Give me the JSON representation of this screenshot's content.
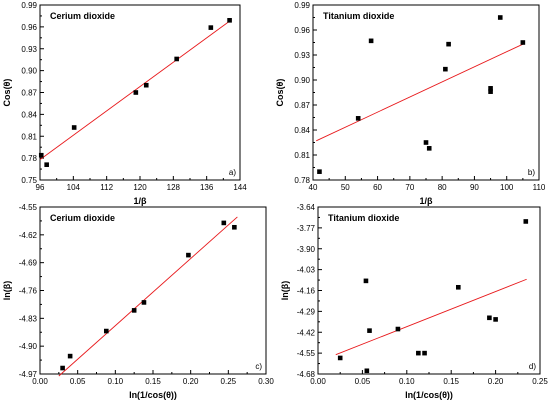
{
  "chart_data": [
    {
      "type": "scatter",
      "title": "Cerium  dioxide",
      "panel_label": "a)",
      "xlabel": "1/β",
      "ylabel": "Cos(θ)",
      "xlim": [
        96,
        144
      ],
      "ylim": [
        0.75,
        0.99
      ],
      "xticks": [
        "96",
        "104",
        "112",
        "120",
        "128",
        "136",
        "144"
      ],
      "yticks": [
        "0.75",
        "0.78",
        "0.81",
        "0.84",
        "0.87",
        "0.90",
        "0.93",
        "0.96",
        "0.99"
      ],
      "points": [
        [
          96.3,
          0.784
        ],
        [
          97.6,
          0.771
        ],
        [
          104.2,
          0.822
        ],
        [
          119.0,
          0.87
        ],
        [
          121.5,
          0.88
        ],
        [
          128.8,
          0.916
        ],
        [
          137.0,
          0.959
        ],
        [
          141.5,
          0.969
        ]
      ],
      "fit_line": [
        [
          96,
          0.778
        ],
        [
          142,
          0.97
        ]
      ]
    },
    {
      "type": "scatter",
      "title": "Titanium  dioxide",
      "panel_label": "b)",
      "xlabel": "1/β",
      "ylabel": "Cos(θ)",
      "xlim": [
        40,
        110
      ],
      "ylim": [
        0.78,
        0.99
      ],
      "xticks": [
        "40",
        "50",
        "60",
        "70",
        "80",
        "90",
        "100",
        "110"
      ],
      "yticks": [
        "0.78",
        "0.81",
        "0.84",
        "0.87",
        "0.90",
        "0.93",
        "0.96",
        "0.99"
      ],
      "points": [
        [
          42,
          0.79
        ],
        [
          54,
          0.854
        ],
        [
          58,
          0.947
        ],
        [
          75,
          0.825
        ],
        [
          76,
          0.818
        ],
        [
          81,
          0.913
        ],
        [
          82,
          0.943
        ],
        [
          95,
          0.886
        ],
        [
          95,
          0.89
        ],
        [
          98,
          0.975
        ],
        [
          105,
          0.945
        ]
      ],
      "fit_line": [
        [
          41,
          0.827
        ],
        [
          105,
          0.943
        ]
      ]
    },
    {
      "type": "scatter",
      "title": "Cerium  dioxide",
      "panel_label": "c)",
      "xlabel": "ln(1/cos(θ))",
      "ylabel": "ln(β)",
      "xlim": [
        0.0,
        0.3
      ],
      "ylim": [
        -4.97,
        -4.55
      ],
      "xticks": [
        "0.00",
        "0.05",
        "0.10",
        "0.15",
        "0.20",
        "0.25",
        "0.30"
      ],
      "yticks": [
        "-4.97",
        "-4.90",
        "-4.83",
        "-4.76",
        "-4.69",
        "-4.62",
        "-4.55"
      ],
      "points": [
        [
          0.03,
          -4.955
        ],
        [
          0.04,
          -4.925
        ],
        [
          0.088,
          -4.862
        ],
        [
          0.125,
          -4.81
        ],
        [
          0.138,
          -4.79
        ],
        [
          0.197,
          -4.671
        ],
        [
          0.244,
          -4.59
        ],
        [
          0.258,
          -4.601
        ]
      ],
      "fit_line": [
        [
          0.025,
          -4.975
        ],
        [
          0.262,
          -4.575
        ]
      ]
    },
    {
      "type": "scatter",
      "title": "Titanium  dioxide",
      "panel_label": "d)",
      "xlabel": "ln(1/cos(θ))",
      "ylabel": "ln(β)",
      "xlim": [
        0.0,
        0.25
      ],
      "ylim": [
        -4.68,
        -3.64
      ],
      "xticks": [
        "0.00",
        "0.05",
        "0.10",
        "0.15",
        "0.20",
        "0.25"
      ],
      "yticks": [
        "-4.68",
        "-4.55",
        "-4.42",
        "-4.29",
        "-4.16",
        "-4.03",
        "-3.90",
        "-3.77",
        "-3.64"
      ],
      "points": [
        [
          0.025,
          -4.58
        ],
        [
          0.054,
          -4.1
        ],
        [
          0.055,
          -4.66
        ],
        [
          0.058,
          -4.41
        ],
        [
          0.09,
          -4.4
        ],
        [
          0.113,
          -4.55
        ],
        [
          0.12,
          -4.55
        ],
        [
          0.158,
          -4.14
        ],
        [
          0.193,
          -4.33
        ],
        [
          0.2,
          -4.34
        ],
        [
          0.234,
          -3.73
        ]
      ],
      "fit_line": [
        [
          0.02,
          -4.56
        ],
        [
          0.235,
          -4.09
        ]
      ]
    }
  ]
}
